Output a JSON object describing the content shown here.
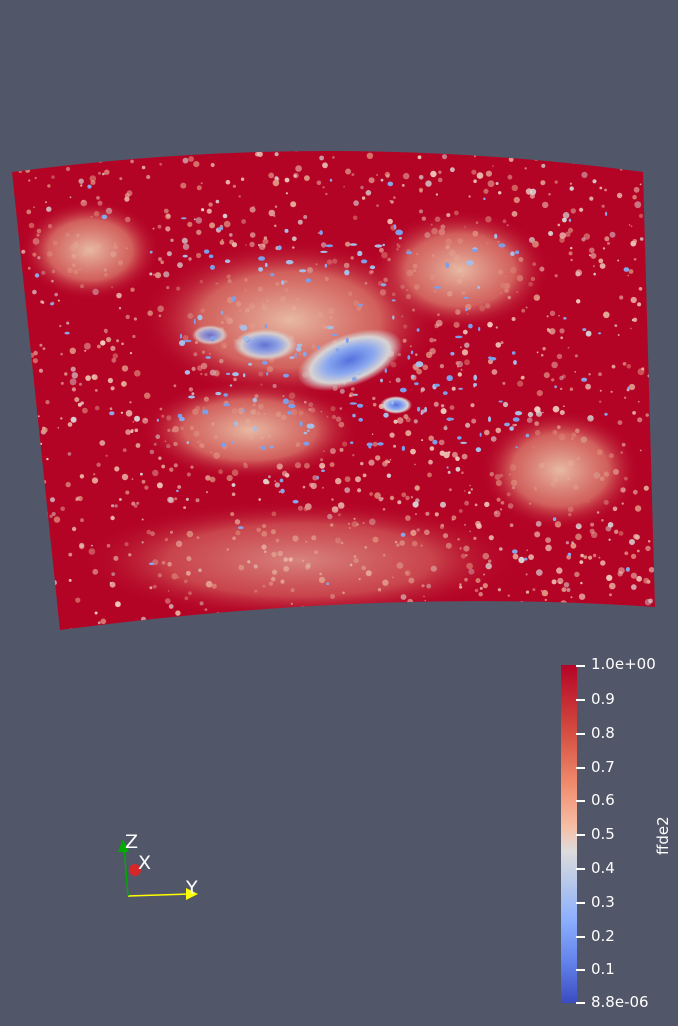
{
  "scalar_bar": {
    "title": "ffde2",
    "max_label": "1.0e+00",
    "min_label": "8.8e-06",
    "ticks": [
      "0.9",
      "0.8",
      "0.7",
      "0.6",
      "0.5",
      "0.4",
      "0.3",
      "0.2",
      "0.1"
    ],
    "colormap": [
      "#b40426",
      "#f6bfa6",
      "#dddcdc",
      "#8db0fe",
      "#3b4cc0"
    ]
  },
  "orientation_axes": {
    "x_label": "X",
    "y_label": "Y",
    "z_label": "Z",
    "x_color": "#d62728",
    "y_color": "#ffff00",
    "z_color": "#00aa00"
  },
  "render": {
    "background": "#525669",
    "dominant_color": "#b40426",
    "feature_color": "#6f8fe8"
  }
}
